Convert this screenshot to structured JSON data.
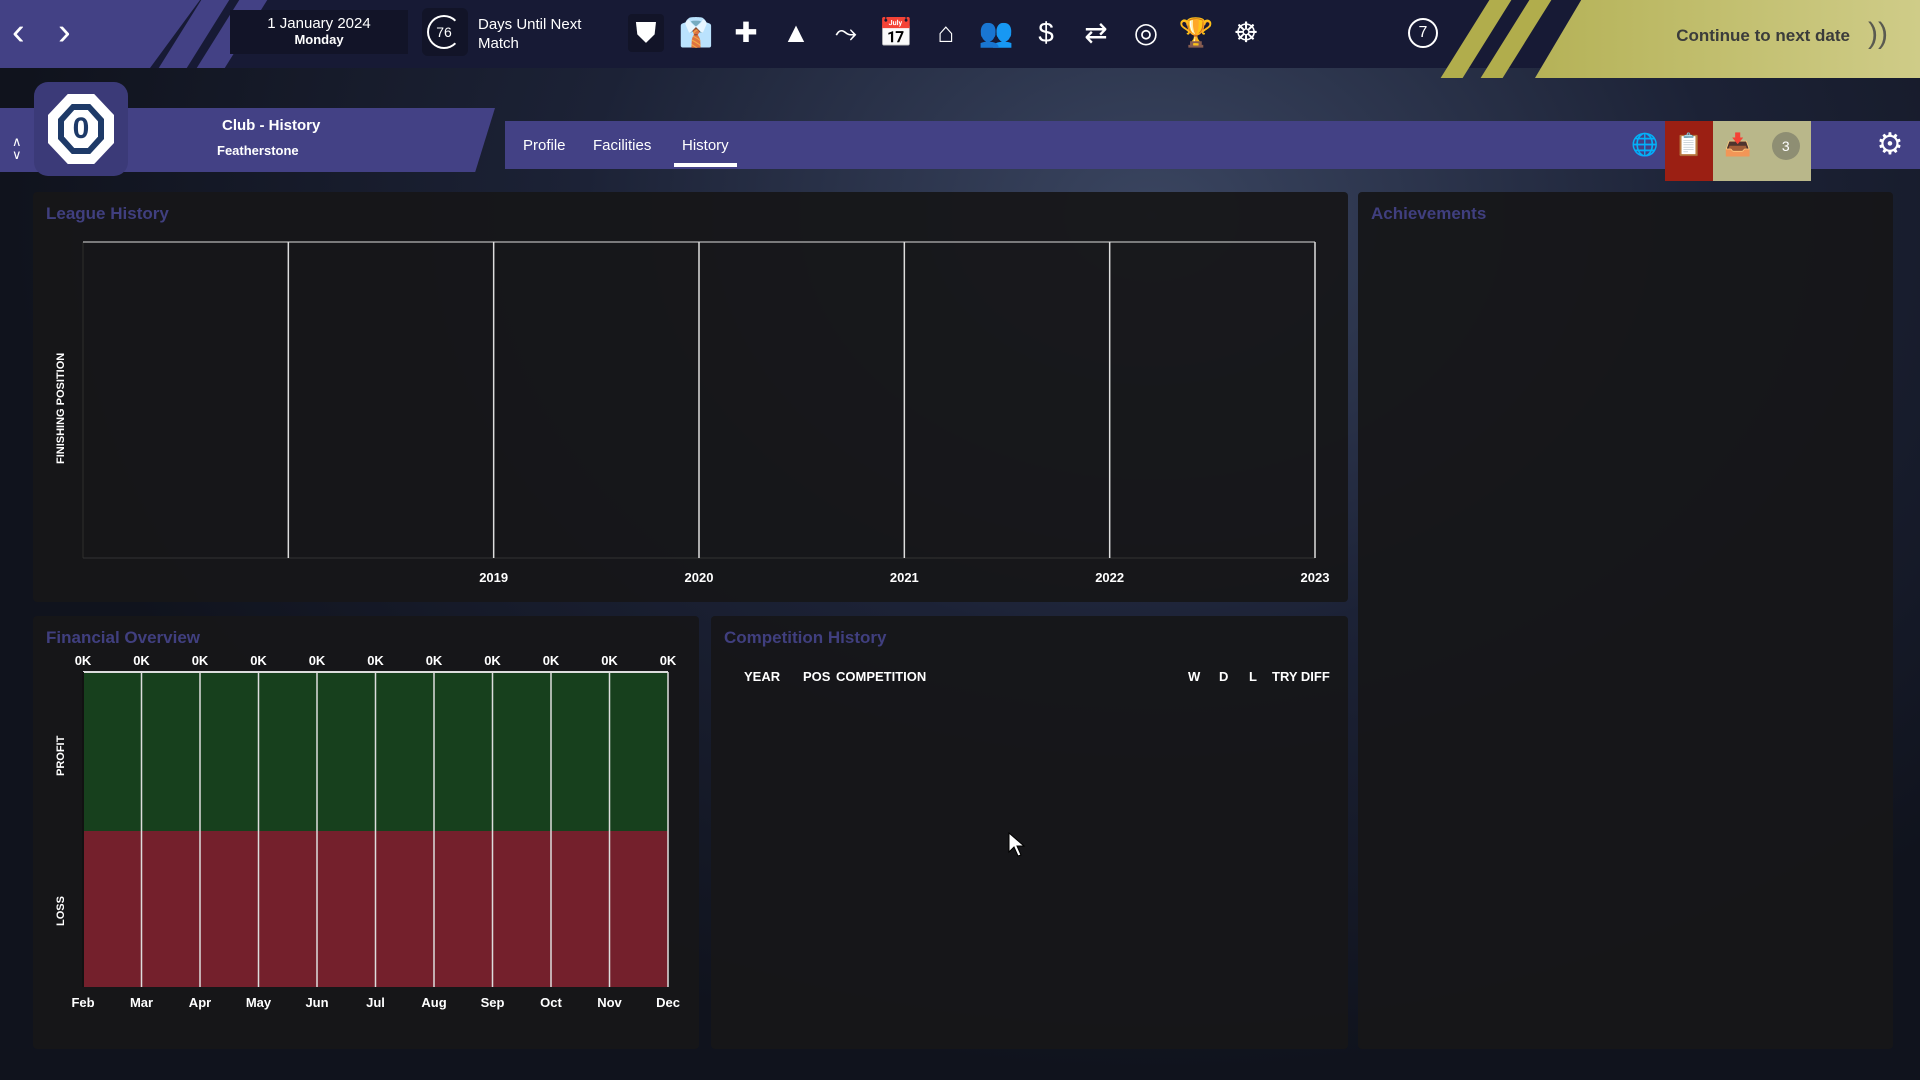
{
  "topbar": {
    "date": "1 January 2024",
    "weekday": "Monday",
    "days_until_next_match": "76",
    "days_label": "Days Until Next Match",
    "icons": [
      "club-shield-icon",
      "staff-icon",
      "medical-icon",
      "training-cone-icon",
      "tactics-icon",
      "calendar-icon",
      "home-icon",
      "squad-icon",
      "finance-icon",
      "transfers-icon",
      "scouting-icon",
      "trophy-icon",
      "board-icon"
    ],
    "speed": "7",
    "continue_label": "Continue to next date"
  },
  "header": {
    "title": "Club - History",
    "club": "Featherstone",
    "tabs": [
      "Profile",
      "Facilities",
      "History"
    ],
    "active_tab": "History",
    "inbox_count": "3"
  },
  "colors": {
    "accent": "#434185",
    "continue": "#cfcc88",
    "profit": "#17401d",
    "loss": "#74202c",
    "panel_title": "#403f7f"
  },
  "league_history": {
    "title": "League History"
  },
  "achievements": {
    "title": "Achievements"
  },
  "financial": {
    "title": "Financial Overview"
  },
  "competition": {
    "title": "Competition History",
    "columns": [
      "YEAR",
      "POS",
      "COMPETITION",
      "W",
      "D",
      "L",
      "TRY DIFF"
    ],
    "rows": []
  },
  "chart_data": [
    {
      "type": "line",
      "title": "League History",
      "ylabel": "FINISHING POSITION",
      "categories": [
        "",
        "2019",
        "2020",
        "2021",
        "2022",
        "2023"
      ],
      "series": [],
      "grid": true
    },
    {
      "type": "bar",
      "title": "Financial Overview",
      "categories": [
        "Feb",
        "Mar",
        "Apr",
        "May",
        "Jun",
        "Jul",
        "Aug",
        "Sep",
        "Oct",
        "Nov",
        "Dec"
      ],
      "values": [
        0,
        0,
        0,
        0,
        0,
        0,
        0,
        0,
        0,
        0,
        0
      ],
      "value_labels": [
        "0K",
        "0K",
        "0K",
        "0K",
        "0K",
        "0K",
        "0K",
        "0K",
        "0K",
        "0K",
        "0K"
      ],
      "ylabel_top": "PROFIT",
      "ylabel_bottom": "LOSS"
    }
  ]
}
